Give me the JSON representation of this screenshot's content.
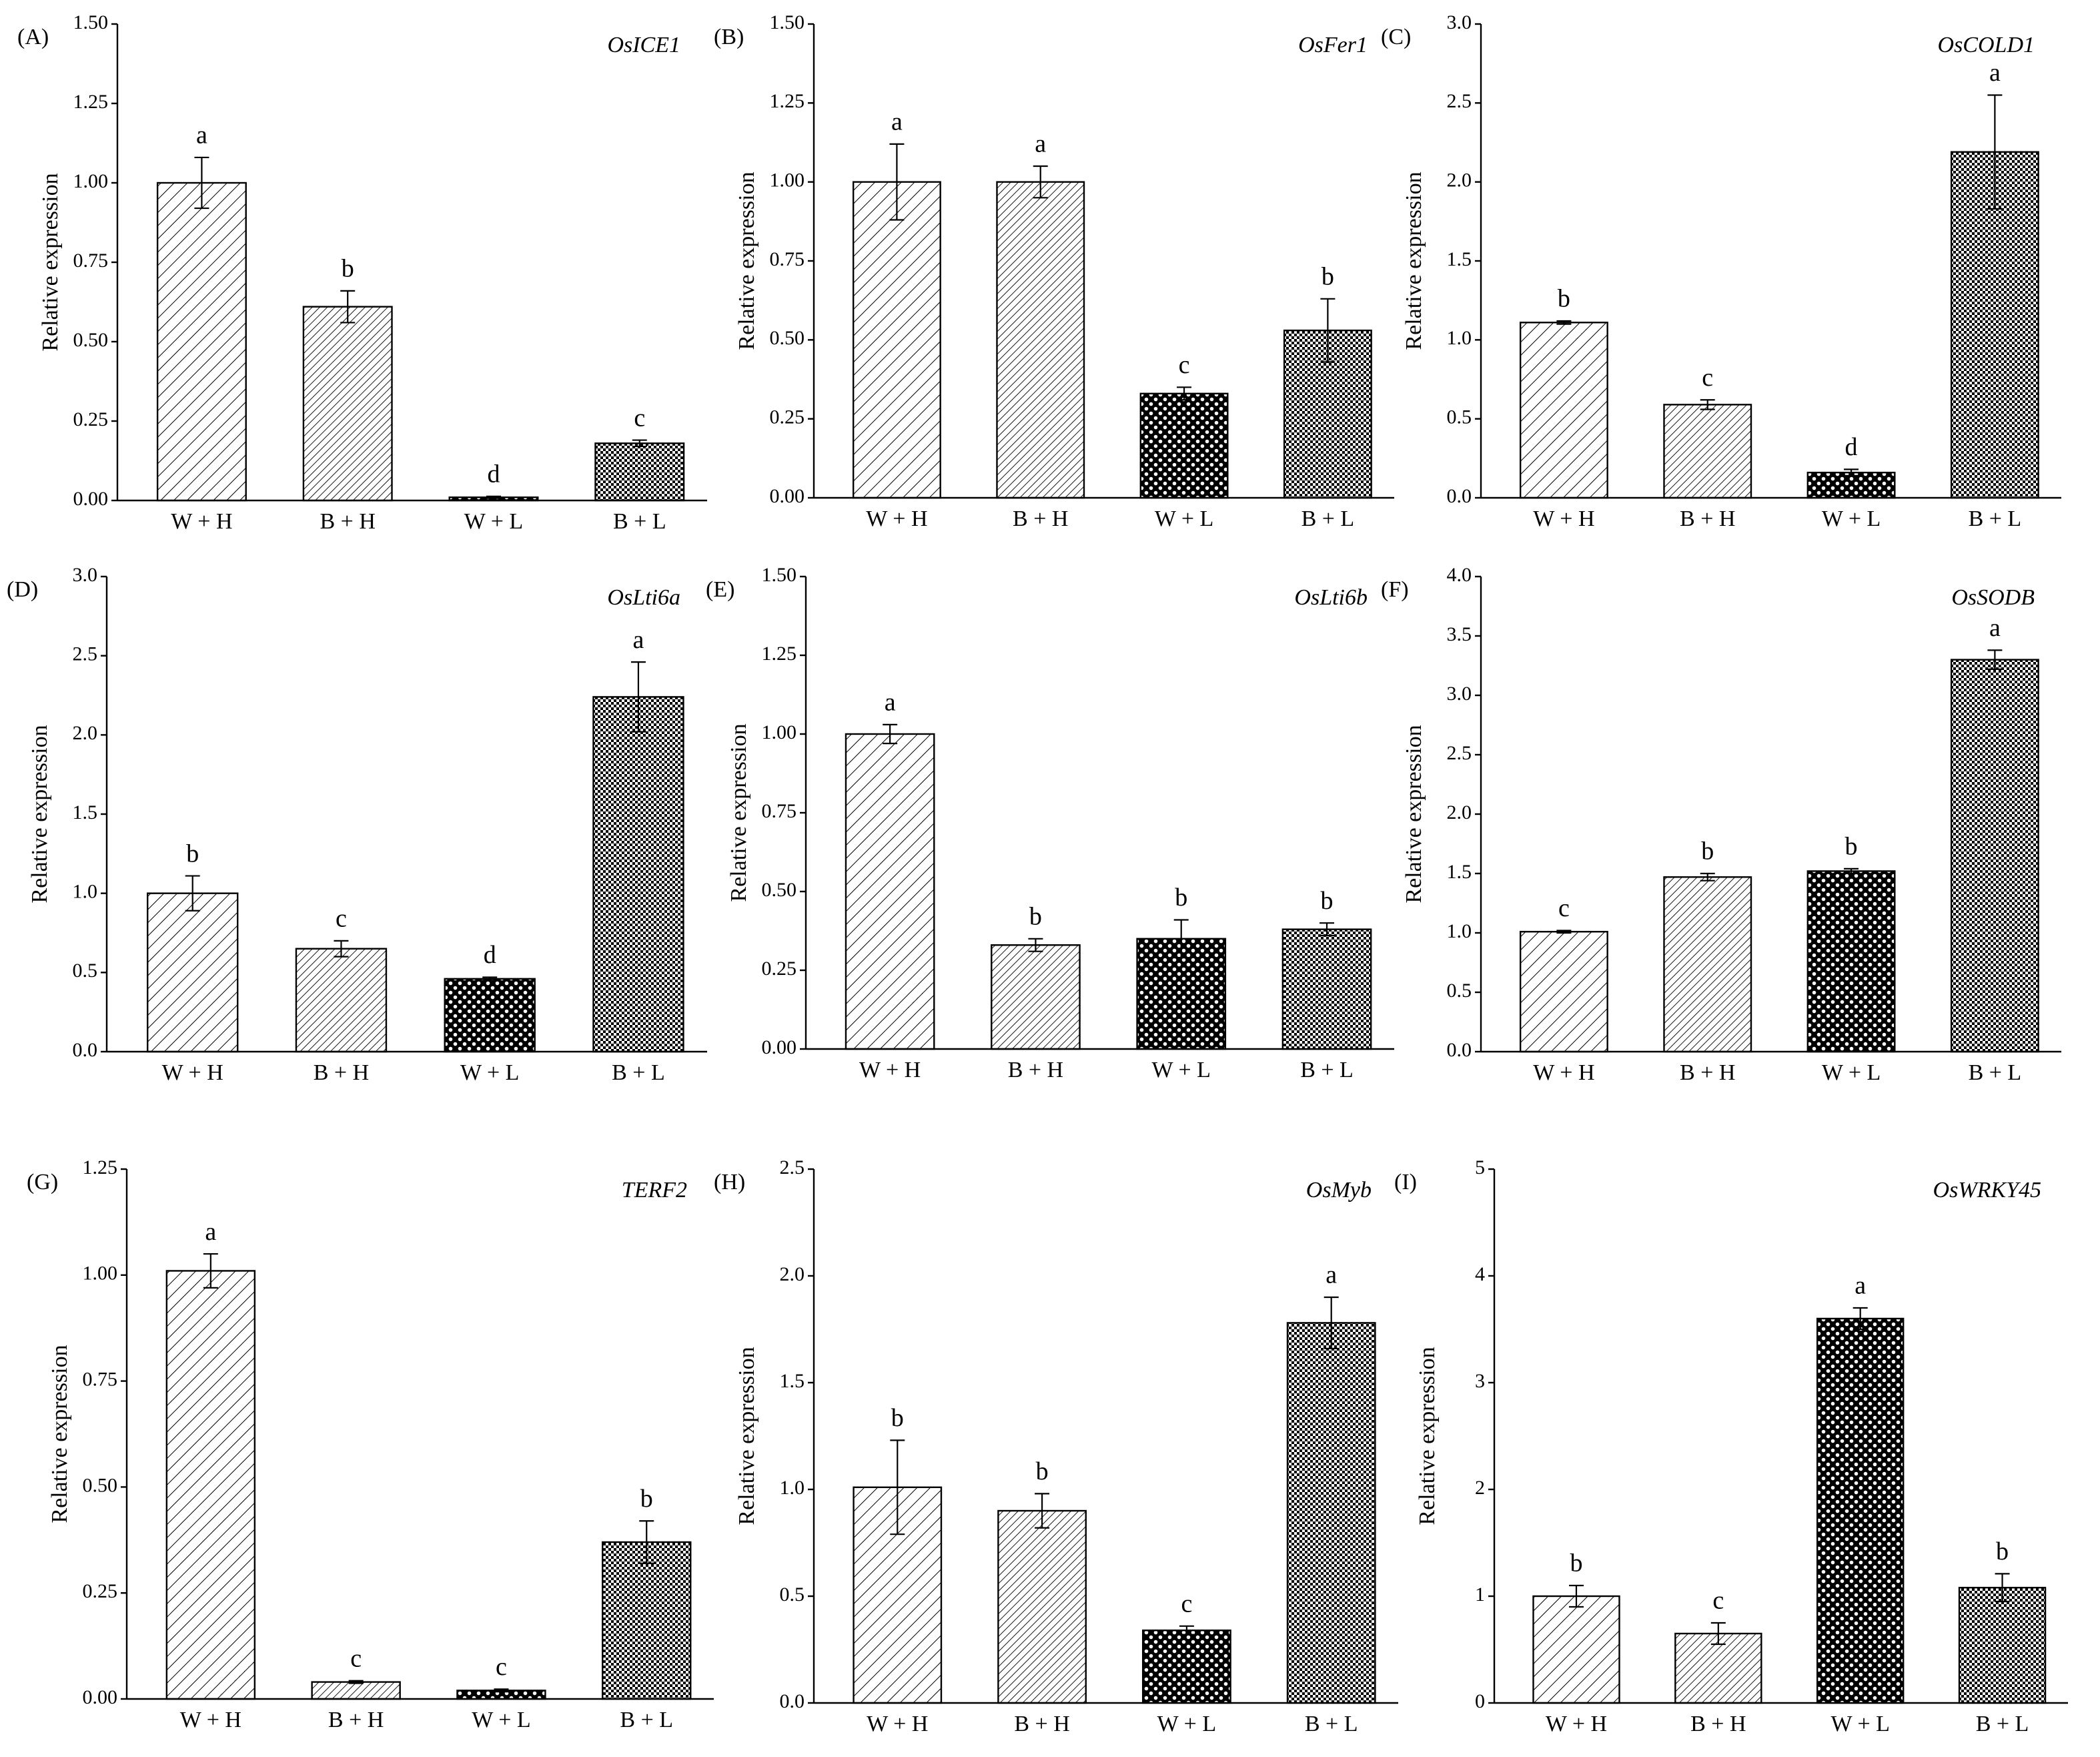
{
  "chart_data": [
    {
      "type": "bar",
      "panel": "(A)",
      "title": "OsICE1",
      "xlabel": "",
      "ylabel": "Relative expression",
      "categories": [
        "W + H",
        "B + H",
        "W + L",
        "B + L"
      ],
      "values": [
        1.0,
        0.61,
        0.01,
        0.18
      ],
      "errors": [
        0.08,
        0.05,
        0.003,
        0.01
      ],
      "letters": [
        "a",
        "b",
        "d",
        "c"
      ],
      "ylim": [
        0,
        1.5
      ],
      "yticks": [
        "0.00",
        "0.25",
        "0.50",
        "0.75",
        "1.00",
        "1.25",
        "1.50"
      ],
      "grid": false
    },
    {
      "type": "bar",
      "panel": "(B)",
      "title": "OsFer1",
      "xlabel": "",
      "ylabel": "Relative expression",
      "categories": [
        "W + H",
        "B + H",
        "W + L",
        "B + L"
      ],
      "values": [
        1.0,
        1.0,
        0.33,
        0.53
      ],
      "errors": [
        0.12,
        0.05,
        0.02,
        0.1
      ],
      "letters": [
        "a",
        "a",
        "c",
        "b"
      ],
      "ylim": [
        0,
        1.5
      ],
      "yticks": [
        "0.00",
        "0.25",
        "0.50",
        "0.75",
        "1.00",
        "1.25",
        "1.50"
      ],
      "grid": false
    },
    {
      "type": "bar",
      "panel": "(C)",
      "title": "OsCOLD1",
      "xlabel": "",
      "ylabel": "Relative expression",
      "categories": [
        "W + H",
        "B + H",
        "W + L",
        "B + L"
      ],
      "values": [
        1.11,
        0.59,
        0.16,
        2.19
      ],
      "errors": [
        0.01,
        0.03,
        0.02,
        0.36
      ],
      "letters": [
        "b",
        "c",
        "d",
        "a"
      ],
      "ylim": [
        0,
        3.0
      ],
      "yticks": [
        "0.0",
        "0.5",
        "1.0",
        "1.5",
        "2.0",
        "2.5",
        "3.0"
      ],
      "grid": false
    },
    {
      "type": "bar",
      "panel": "(D)",
      "title": "OsLti6a",
      "xlabel": "",
      "ylabel": "Relative expression",
      "categories": [
        "W + H",
        "B + H",
        "W + L",
        "B + L"
      ],
      "values": [
        1.0,
        0.65,
        0.46,
        2.24
      ],
      "errors": [
        0.11,
        0.05,
        0.01,
        0.22
      ],
      "letters": [
        "b",
        "c",
        "d",
        "a"
      ],
      "ylim": [
        0,
        3.0
      ],
      "yticks": [
        "0.0",
        "0.5",
        "1.0",
        "1.5",
        "2.0",
        "2.5",
        "3.0"
      ],
      "grid": false
    },
    {
      "type": "bar",
      "panel": "(E)",
      "title": "OsLti6b",
      "xlabel": "",
      "ylabel": "Relative expression",
      "categories": [
        "W + H",
        "B + H",
        "W + L",
        "B + L"
      ],
      "values": [
        1.0,
        0.33,
        0.35,
        0.38
      ],
      "errors": [
        0.03,
        0.02,
        0.06,
        0.02
      ],
      "letters": [
        "a",
        "b",
        "b",
        "b"
      ],
      "ylim": [
        0,
        1.5
      ],
      "yticks": [
        "0.00",
        "0.25",
        "0.50",
        "0.75",
        "1.00",
        "1.25",
        "1.50"
      ],
      "grid": false
    },
    {
      "type": "bar",
      "panel": "(F)",
      "title": "OsSODB",
      "xlabel": "",
      "ylabel": "Relative expression",
      "categories": [
        "W + H",
        "B + H",
        "W + L",
        "B + L"
      ],
      "values": [
        1.01,
        1.47,
        1.52,
        3.3
      ],
      "errors": [
        0.01,
        0.03,
        0.02,
        0.08
      ],
      "letters": [
        "c",
        "b",
        "b",
        "a"
      ],
      "ylim": [
        0,
        4.0
      ],
      "yticks": [
        "0.0",
        "0.5",
        "1.0",
        "1.5",
        "2.0",
        "2.5",
        "3.0",
        "3.5",
        "4.0"
      ],
      "grid": false
    },
    {
      "type": "bar",
      "panel": "(G)",
      "title": "TERF2",
      "xlabel": "",
      "ylabel": "Relative expression",
      "categories": [
        "W + H",
        "B + H",
        "W + L",
        "B + L"
      ],
      "values": [
        1.01,
        0.04,
        0.02,
        0.37
      ],
      "errors": [
        0.04,
        0.003,
        0.003,
        0.05
      ],
      "letters": [
        "a",
        "c",
        "c",
        "b"
      ],
      "ylim": [
        0,
        1.25
      ],
      "yticks": [
        "0.00",
        "0.25",
        "0.50",
        "0.75",
        "1.00",
        "1.25"
      ],
      "grid": false
    },
    {
      "type": "bar",
      "panel": "(H)",
      "title": "OsMyb",
      "xlabel": "",
      "ylabel": "Relative expression",
      "categories": [
        "W + H",
        "B + H",
        "W + L",
        "B + L"
      ],
      "values": [
        1.01,
        0.9,
        0.34,
        1.78
      ],
      "errors": [
        0.22,
        0.08,
        0.02,
        0.12
      ],
      "letters": [
        "b",
        "b",
        "c",
        "a"
      ],
      "ylim": [
        0,
        2.5
      ],
      "yticks": [
        "0.0",
        "0.5",
        "1.0",
        "1.5",
        "2.0",
        "2.5"
      ],
      "grid": false
    },
    {
      "type": "bar",
      "panel": "(I)",
      "title": "OsWRKY45",
      "xlabel": "",
      "ylabel": "Relative expression",
      "categories": [
        "W + H",
        "B + H",
        "W + L",
        "B + L"
      ],
      "values": [
        1.0,
        0.65,
        3.6,
        1.08
      ],
      "errors": [
        0.1,
        0.1,
        0.1,
        0.13
      ],
      "letters": [
        "b",
        "c",
        "a",
        "b"
      ],
      "ylim": [
        0,
        5
      ],
      "yticks": [
        "0",
        "1",
        "2",
        "3",
        "4",
        "5"
      ],
      "grid": false
    }
  ]
}
